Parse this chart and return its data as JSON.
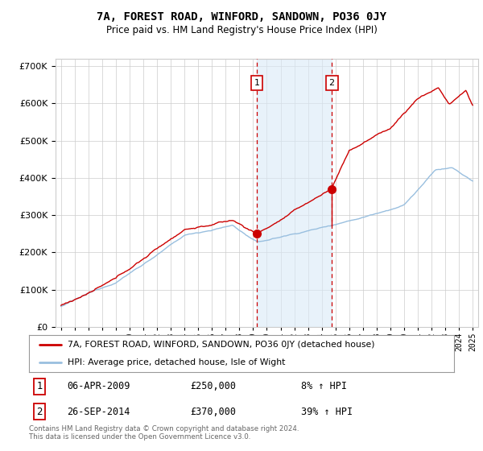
{
  "title": "7A, FOREST ROAD, WINFORD, SANDOWN, PO36 0JY",
  "subtitle": "Price paid vs. HM Land Registry's House Price Index (HPI)",
  "hpi_label": "HPI: Average price, detached house, Isle of Wight",
  "property_label": "7A, FOREST ROAD, WINFORD, SANDOWN, PO36 0JY (detached house)",
  "footer": "Contains HM Land Registry data © Crown copyright and database right 2024.\nThis data is licensed under the Open Government Licence v3.0.",
  "sale1": {
    "date": "06-APR-2009",
    "price": 250000,
    "pct": "8%",
    "direction": "↑",
    "label": "1"
  },
  "sale2": {
    "date": "26-SEP-2014",
    "price": 370000,
    "pct": "39%",
    "direction": "↑",
    "label": "2"
  },
  "sale1_year": 2009.27,
  "sale2_year": 2014.73,
  "ylim": [
    0,
    720000
  ],
  "yticks": [
    0,
    100000,
    200000,
    300000,
    400000,
    500000,
    600000,
    700000
  ],
  "background_color": "#ffffff",
  "grid_color": "#cccccc",
  "hpi_color": "#99bfdf",
  "property_color": "#cc0000",
  "sale_marker_color": "#cc0000",
  "vline_color": "#cc0000",
  "shade_color": "#daeaf7",
  "annotation_box_color": "#cc0000",
  "xlim_left": 1994.6,
  "xlim_right": 2025.4
}
